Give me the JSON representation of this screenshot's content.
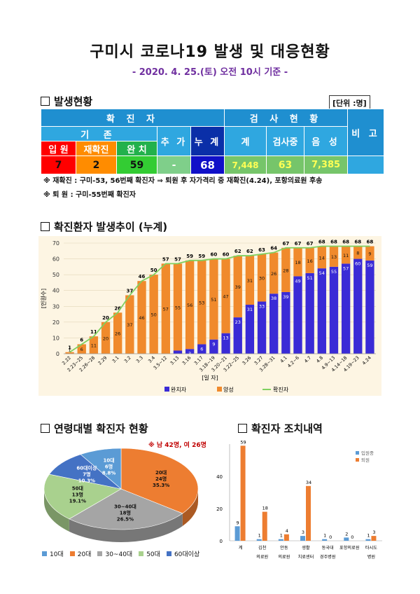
{
  "title": "구미시 코로나19 발생 및 대응현황",
  "subtitle": "- 2020. 4. 25.(토) 오전 10시 기준 -",
  "status": {
    "heading": "발생현황",
    "unit": "[단위 :명]",
    "confirmed_header": "확 진 자",
    "existing_header": "기 존",
    "test_header": "검 사 현 황",
    "remarks": "비 고",
    "added_label": "추 가",
    "total_label": "누 계",
    "cols": [
      "입 원",
      "재확진",
      "완 치"
    ],
    "test_cols": [
      "계",
      "검사중",
      "음 성"
    ],
    "values": {
      "hospitalized": "7",
      "reconfirmed": "2",
      "recovered": "59",
      "added": "-",
      "total": "68",
      "tests_total": "7,448",
      "testing": "63",
      "negative": "7,385"
    },
    "notes": [
      "※ 재확진 : 구미-53, 56번째 확진자 ⇒ 퇴원 후 자가격리 중 재확진(4.24), 포항의료원 후송",
      "※ 퇴 원 : 구미-55번째 확진자"
    ],
    "colors": {
      "hospitalized": "#ff0000",
      "reconfirmed": "#ff8c00",
      "recovered": "#33cc33",
      "added": "#7fcf8a",
      "total": "#1010c8",
      "tests": "#76c56a"
    }
  },
  "trend": {
    "heading": "확진환자 발생추이 (누계)",
    "xlabel": "[일 자]",
    "ylabel": "[인원수]",
    "legend": [
      "완치자",
      "양성",
      "확진자"
    ]
  },
  "age": {
    "heading": "연령대별 확진자 현황",
    "note": "※ 남 42명, 여 26명",
    "legend": [
      "10대",
      "20대",
      "30~40대",
      "50대",
      "60대이상"
    ],
    "labels": [
      {
        "a": "20대",
        "b": "24명",
        "c": "35.3%"
      },
      {
        "a": "30~40대",
        "b": "18명",
        "c": "26.5%"
      },
      {
        "a": "50대",
        "b": "13명",
        "c": "19.1%"
      },
      {
        "a": "60대이상",
        "b": "7명",
        "c": "10.3%"
      },
      {
        "a": "10대",
        "b": "6명",
        "c": "8.8%"
      }
    ]
  },
  "measures": {
    "heading": "확진자 조치내역",
    "legend": [
      "입원중",
      "퇴원"
    ]
  },
  "chart_data": [
    {
      "type": "bar",
      "title": "확진환자 발생추이 (누계)",
      "xlabel": "[일 자]",
      "ylabel": "[인원수]",
      "ylim": [
        0,
        70
      ],
      "yticks": [
        0,
        10,
        20,
        30,
        40,
        50,
        60,
        70
      ],
      "categories": [
        "2.22",
        "2.23~25",
        "2.26~28",
        "2.29",
        "3.1",
        "3.2",
        "3.3",
        "3.4",
        "3.5~12",
        "3.13",
        "3.16",
        "3.17",
        "3.18~19",
        "3.20~21",
        "3.22~25",
        "3.26",
        "3.27",
        "3.28~31",
        "4.1",
        "4.2~6",
        "4.7",
        "4.8",
        "4.9~13",
        "4.14~18",
        "4.19~23",
        "4.24"
      ],
      "series": [
        {
          "name": "완치자",
          "color": "#3a2bd6",
          "values": [
            0,
            0,
            0,
            0,
            0,
            0,
            0,
            0,
            0,
            2,
            3,
            6,
            9,
            13,
            23,
            31,
            33,
            38,
            39,
            49,
            51,
            54,
            55,
            57,
            60,
            59
          ]
        },
        {
          "name": "양성",
          "color": "#f08a2c",
          "values": [
            1,
            6,
            11,
            20,
            26,
            37,
            46,
            50,
            57,
            55,
            56,
            53,
            51,
            47,
            39,
            31,
            30,
            26,
            28,
            18,
            16,
            14,
            13,
            11,
            8,
            9
          ]
        },
        {
          "name": "확진자",
          "color": "#80d060",
          "values": [
            1,
            6,
            11,
            20,
            26,
            37,
            46,
            50,
            57,
            57,
            59,
            59,
            60,
            60,
            62,
            62,
            63,
            64,
            67,
            67,
            67,
            68,
            68,
            68,
            68,
            68
          ]
        }
      ]
    },
    {
      "type": "pie",
      "title": "연령대별 확진자 현황",
      "categories": [
        "10대",
        "20대",
        "30~40대",
        "50대",
        "60대이상"
      ],
      "values": [
        6,
        24,
        18,
        13,
        7
      ],
      "percent": [
        8.8,
        35.3,
        26.5,
        19.1,
        10.3
      ],
      "colors": [
        "#5b9bd5",
        "#ed7d31",
        "#a5a5a5",
        "#a9d18e",
        "#4472c4"
      ]
    },
    {
      "type": "bar",
      "title": "확진자 조치내역",
      "ylim": [
        0,
        60
      ],
      "yticks": [
        0,
        20,
        40
      ],
      "categories": [
        "계",
        "김천\n의료원",
        "안동\n의료원",
        "생활\n치료센터",
        "동국대\n경주병원",
        "포항의료원",
        "타시도\n병원"
      ],
      "series": [
        {
          "name": "입원중",
          "color": "#5b9bd5",
          "values": [
            9,
            1,
            1,
            3,
            1,
            2,
            1
          ]
        },
        {
          "name": "퇴원",
          "color": "#ed7d31",
          "values": [
            59,
            18,
            4,
            34,
            0,
            0,
            3
          ]
        }
      ]
    }
  ]
}
